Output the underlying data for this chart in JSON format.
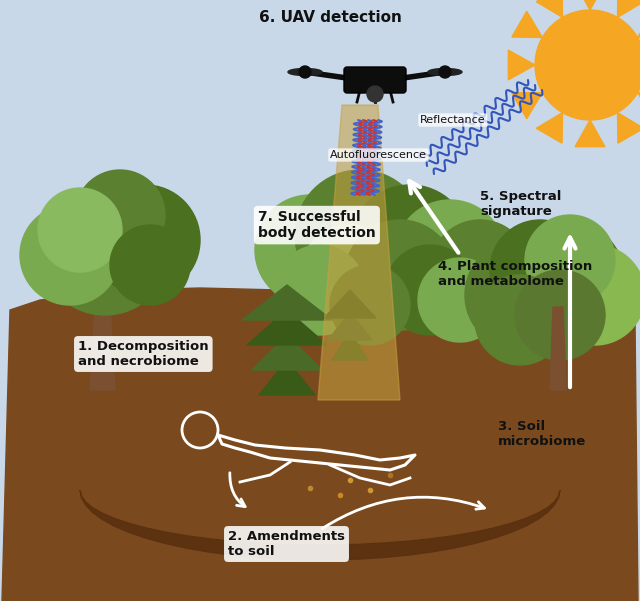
{
  "bg_color": "#c8d8e8",
  "sun_color": "#f5a623",
  "soil_color": "#7a4a1e",
  "soil_dark_color": "#5a3010",
  "tree_trunk_color": "#7a5030",
  "labels": {
    "1": "1. Decomposition\nand necrobiome",
    "2": "2. Amendments\nto soil",
    "3": "3. Soil\nmicrobiome",
    "4": "4. Plant composition\nand metabolome",
    "5": "5. Spectral\nsignature",
    "6": "6. UAV detection",
    "7": "7. Successful\nbody detection"
  },
  "wave_blue": "#4466cc",
  "wave_red": "#cc3333",
  "reflectance_blue": "#3355bb",
  "beam_color": "#c8a040",
  "beam_alpha": 0.55,
  "foliage_colors": {
    "dark": "#4a7020",
    "mid": "#5a8030",
    "light": "#7aaa50",
    "bright": "#8aba60",
    "conifer_dark": "#3a5a18",
    "conifer_mid": "#4a6a28",
    "right_dark": "#5a7830",
    "right_light": "#8ab850"
  }
}
